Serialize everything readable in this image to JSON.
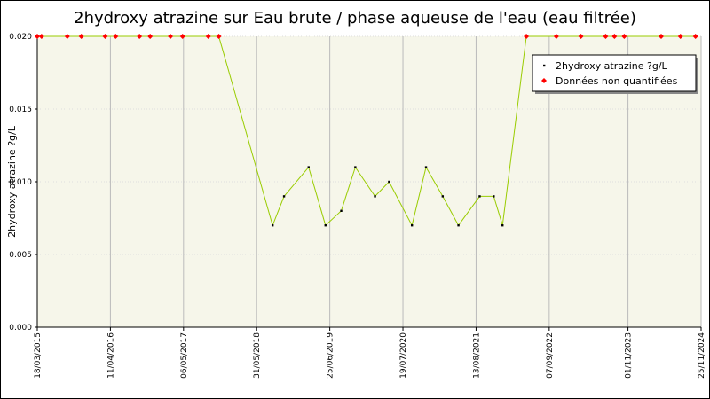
{
  "chart_data": {
    "type": "line",
    "title": "2hydroxy atrazine sur Eau brute / phase aqueuse de l'eau (eau filtrée)",
    "y_label": "2hydroxy atrazine ?g/L",
    "x": [
      "18/03/2015",
      "10/04/2015",
      "25/08/2015",
      "08/11/2015",
      "14/03/2016",
      "09/05/2016",
      "13/09/2016",
      "09/11/2016",
      "25/02/2017",
      "01/05/2017",
      "15/09/2017",
      "10/11/2017",
      "24/08/2018",
      "24/10/2018",
      "04/03/2019",
      "02/06/2019",
      "25/08/2019",
      "08/11/2019",
      "21/02/2020",
      "06/05/2020",
      "05/09/2020",
      "19/11/2020",
      "16/02/2021",
      "11/05/2021",
      "01/09/2021",
      "15/11/2021",
      "01/01/2022",
      "08/05/2022",
      "15/10/2022",
      "23/02/2023",
      "05/07/2023",
      "21/08/2023",
      "12/10/2023",
      "26/04/2024",
      "07/08/2024",
      "26/10/2024"
    ],
    "series": [
      {
        "name": "2hydroxy atrazine ?g/L",
        "color": "#000000",
        "line_color": "#99cc00",
        "values": [
          null,
          null,
          null,
          null,
          null,
          null,
          null,
          null,
          null,
          null,
          null,
          null,
          0.007,
          0.009,
          0.011,
          0.007,
          0.008,
          0.011,
          0.009,
          0.01,
          0.007,
          0.011,
          0.009,
          0.007,
          0.009,
          0.009,
          0.007,
          null,
          null,
          null,
          null,
          null,
          null,
          null,
          null,
          null
        ]
      },
      {
        "name": "Données non quantifiées",
        "color": "#ff0000",
        "values": [
          0.02,
          0.02,
          0.02,
          0.02,
          0.02,
          0.02,
          0.02,
          0.02,
          0.02,
          0.02,
          0.02,
          0.02,
          null,
          null,
          null,
          null,
          null,
          null,
          null,
          null,
          null,
          null,
          null,
          null,
          null,
          null,
          null,
          0.02,
          0.02,
          0.02,
          0.02,
          0.02,
          0.02,
          0.02,
          0.02,
          0.02
        ]
      }
    ],
    "xlim": [
      "18/03/2015",
      "25/11/2024"
    ],
    "xticks": [
      "18/03/2015",
      "11/04/2016",
      "06/05/2017",
      "31/05/2018",
      "25/06/2019",
      "19/07/2020",
      "13/08/2021",
      "07/09/2022",
      "01/11/2023",
      "25/11/2024"
    ],
    "ylim": [
      0,
      0.02
    ],
    "yticks": [
      {
        "value": 0,
        "label": "0.000"
      },
      {
        "value": 0.005,
        "label": "0.005"
      },
      {
        "value": 0.01,
        "label": "0.010"
      },
      {
        "value": 0.015,
        "label": "0.015"
      },
      {
        "value": 0.02,
        "label": "0.020"
      }
    ],
    "grid": true,
    "legend": "upper right"
  }
}
